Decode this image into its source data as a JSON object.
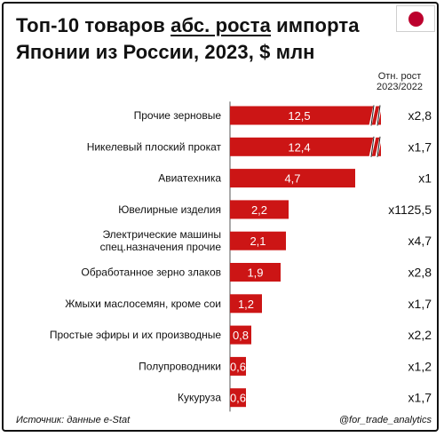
{
  "title_parts": {
    "p1": "Топ-10 товаров ",
    "p2": "абс. роста",
    "p3": " импорта",
    "p4": "Японии из России, 2023, $ млн"
  },
  "ratio_header": {
    "line1": "Отн. рост",
    "line2": "2023/2022"
  },
  "colors": {
    "bar": "#cc1515",
    "bar_text": "#ffffff",
    "axis": "#555555",
    "flag_disc": "#bc002d"
  },
  "chart_data": {
    "type": "bar",
    "orientation": "horizontal",
    "categories": [
      "Прочие зерновые",
      "Никелевый плоский прокат",
      "Авиатехника",
      "Ювелирные изделия",
      "Электрические машины спец.назначения прочие",
      "Обработанное зерно злаков",
      "Жмыхи маслосемян, кроме сои",
      "Простые эфиры и их производные",
      "Полупроводники",
      "Кукуруза"
    ],
    "category_lines": [
      [
        "Прочие зерновые"
      ],
      [
        "Никелевый плоский прокат"
      ],
      [
        "Авиатехника"
      ],
      [
        "Ювелирные изделия"
      ],
      [
        "Электрические машины",
        "спец.назначения прочие"
      ],
      [
        "Обработанное зерно злаков"
      ],
      [
        "Жмыхи маслосемян, кроме сои"
      ],
      [
        "Простые эфиры и их производные"
      ],
      [
        "Полупроводники"
      ],
      [
        "Кукуруза"
      ]
    ],
    "values": [
      12.5,
      12.4,
      4.7,
      2.2,
      2.1,
      1.9,
      1.2,
      0.8,
      0.6,
      0.6
    ],
    "value_labels": [
      "12,5",
      "12,4",
      "4,7",
      "2,2",
      "2,1",
      "1,9",
      "1,2",
      "0,8",
      "0,6",
      "0,6"
    ],
    "ratios": [
      "x2,8",
      "x1,7",
      "x1",
      "x1125,5",
      "x4,7",
      "x2,8",
      "x1,7",
      "x2,2",
      "x1,2",
      "x1,7"
    ],
    "axis_break_after": 5.0,
    "broken_bars": [
      0,
      1
    ],
    "unit": "$ млн"
  },
  "footer": {
    "source": "Источник: данные e-Stat",
    "handle": "@for_trade_analytics"
  }
}
